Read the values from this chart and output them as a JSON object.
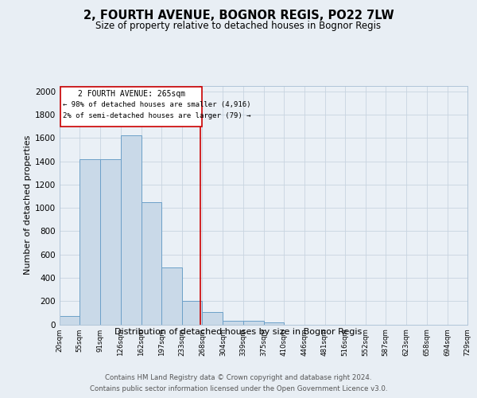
{
  "title": "2, FOURTH AVENUE, BOGNOR REGIS, PO22 7LW",
  "subtitle": "Size of property relative to detached houses in Bognor Regis",
  "xlabel": "Distribution of detached houses by size in Bognor Regis",
  "ylabel": "Number of detached properties",
  "bin_edges": [
    20,
    55,
    91,
    126,
    162,
    197,
    233,
    268,
    304,
    339,
    375,
    410,
    446,
    481,
    516,
    552,
    587,
    623,
    658,
    694,
    729
  ],
  "bar_heights": [
    75,
    1420,
    1420,
    1620,
    1050,
    490,
    200,
    105,
    30,
    30,
    20,
    0,
    0,
    0,
    0,
    0,
    0,
    0,
    0,
    0
  ],
  "bar_color": "#c9d9e8",
  "bar_edge_color": "#6ca0c8",
  "red_line_x": 265,
  "annotation_title": "2 FOURTH AVENUE: 265sqm",
  "annotation_line1": "← 98% of detached houses are smaller (4,916)",
  "annotation_line2": "2% of semi-detached houses are larger (79) →",
  "annotation_box_color": "#ffffff",
  "annotation_box_edge": "#cc0000",
  "red_line_color": "#cc0000",
  "tick_labels": [
    "20sqm",
    "55sqm",
    "91sqm",
    "126sqm",
    "162sqm",
    "197sqm",
    "233sqm",
    "268sqm",
    "304sqm",
    "339sqm",
    "375sqm",
    "410sqm",
    "446sqm",
    "481sqm",
    "516sqm",
    "552sqm",
    "587sqm",
    "623sqm",
    "658sqm",
    "694sqm",
    "729sqm"
  ],
  "ylim": [
    0,
    2050
  ],
  "yticks": [
    0,
    200,
    400,
    600,
    800,
    1000,
    1200,
    1400,
    1600,
    1800,
    2000
  ],
  "background_color": "#e8eef4",
  "plot_bg_color": "#eaf0f6",
  "footer_line1": "Contains HM Land Registry data © Crown copyright and database right 2024.",
  "footer_line2": "Contains public sector information licensed under the Open Government Licence v3.0."
}
